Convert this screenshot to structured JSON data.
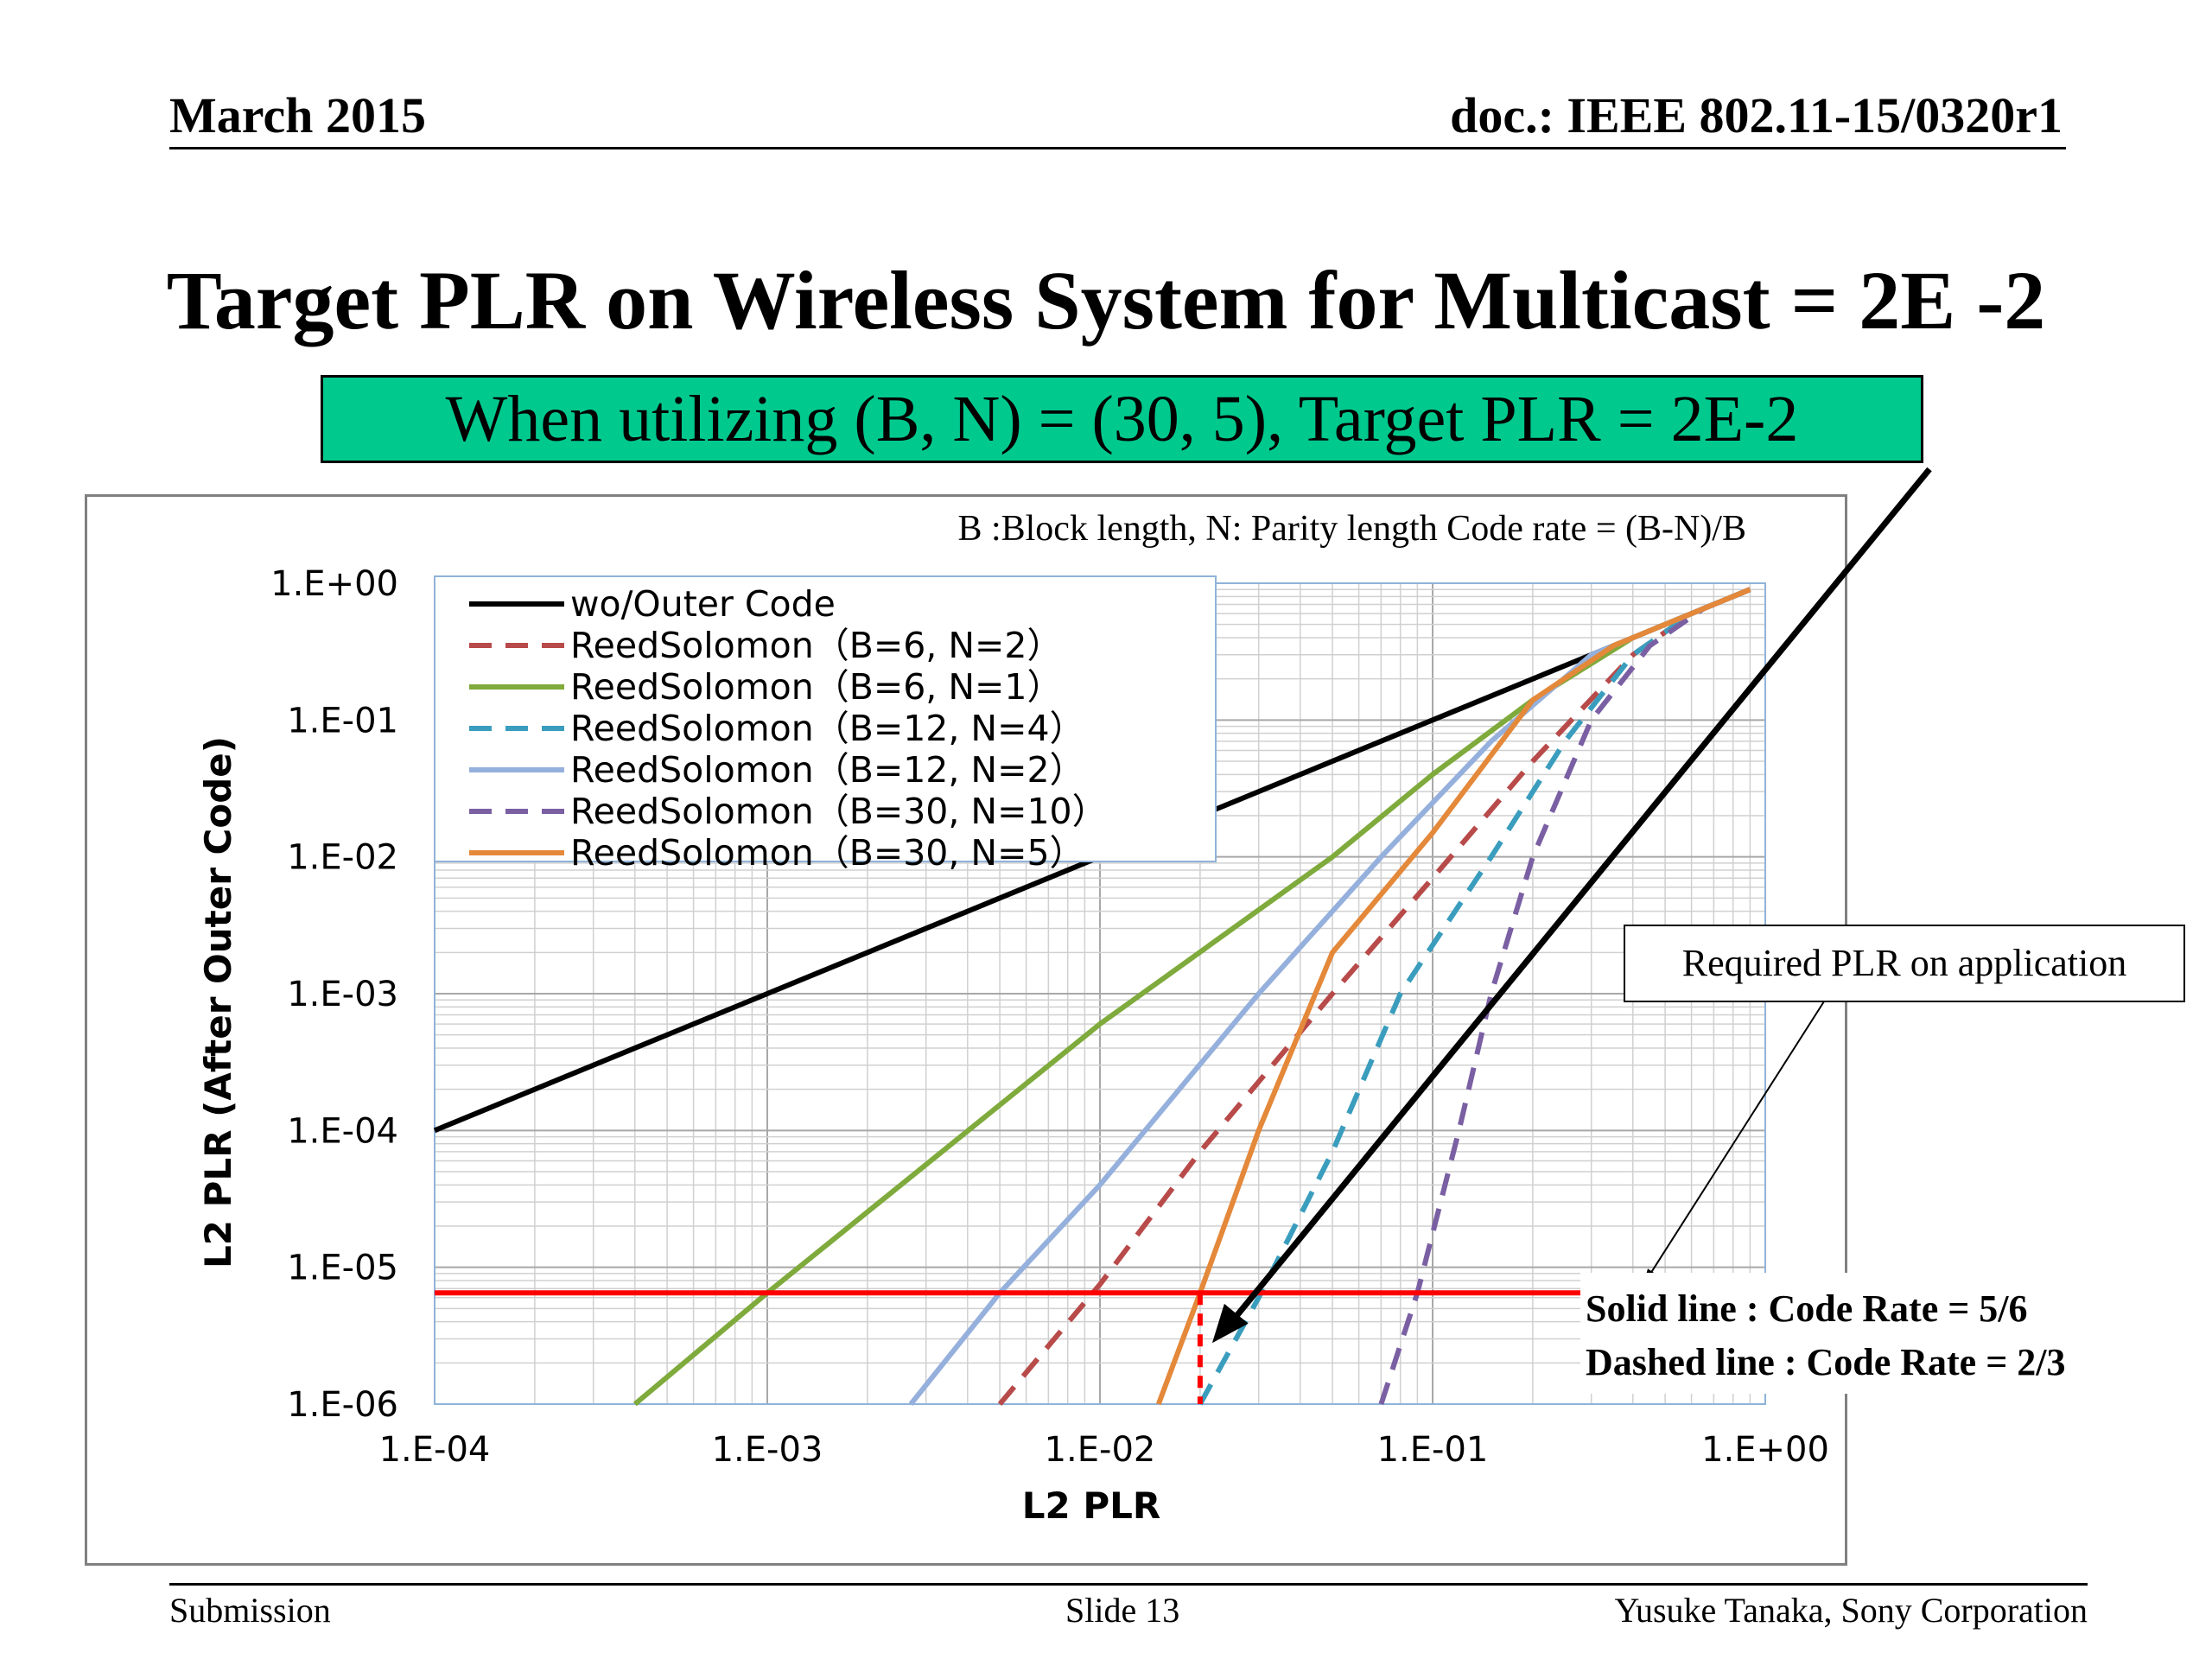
{
  "header": {
    "date": "March 2015",
    "doc_id": "doc.: IEEE 802.11-15/0320r1"
  },
  "title": "Target PLR on Wireless System for Multicast = 2E -2",
  "subtitle": "When utilizing (B, N)  =  (30, 5), Target PLR = 2E-2",
  "footer": {
    "left": "Submission",
    "center": "Slide 13",
    "right": "Yusuke Tanaka, Sony Corporation"
  },
  "colors": {
    "subtitle_bg": "#00c98e",
    "required_line": "#ff0000"
  },
  "chart_data": {
    "type": "line",
    "xlabel": "L2 PLR",
    "ylabel": "L2 PLR (After Outer Code)",
    "x_scale": "log",
    "y_scale": "log",
    "xlim": [
      0.0001,
      1
    ],
    "ylim": [
      1e-06,
      1
    ],
    "x_ticks": [
      "1.E-04",
      "1.E-03",
      "1.E-02",
      "1.E-01",
      "1.E+00"
    ],
    "y_ticks": [
      "1.E+00",
      "1.E-01",
      "1.E-02",
      "1.E-03",
      "1.E-04",
      "1.E-05",
      "1.E-06"
    ],
    "grid": true,
    "legend_position": "top-left",
    "annotation_top": "B :Block length, N: Parity length Code rate = (B-N)/B",
    "annotation_required": "Required PLR on application",
    "annotation_solid": "Solid line : Code Rate = 5/6",
    "annotation_dashed": "Dashed line : Code Rate = 2/3",
    "required_plr": 6.5e-06,
    "target_plr": 0.02,
    "series": [
      {
        "name": "wo/Outer Code",
        "color": "#000000",
        "dash": false,
        "x": [
          0.0001,
          0.001,
          0.01,
          0.1,
          0.3,
          0.9
        ],
        "y": [
          0.0001,
          0.001,
          0.01,
          0.1,
          0.3,
          0.9
        ]
      },
      {
        "name": "ReedSolomon（B=6, N=2）",
        "color": "#b84a4a",
        "dash": true,
        "x": [
          0.005,
          0.01,
          0.02,
          0.05,
          0.1,
          0.2,
          0.4,
          0.6,
          0.9
        ],
        "y": [
          1e-06,
          7.5e-06,
          7e-05,
          0.001,
          0.007,
          0.05,
          0.3,
          0.6,
          0.9
        ]
      },
      {
        "name": "ReedSolomon（B=6, N=1）",
        "color": "#7faa3c",
        "dash": false,
        "x": [
          0.0004,
          0.001,
          0.01,
          0.05,
          0.1,
          0.2,
          0.4,
          0.9
        ],
        "y": [
          1e-06,
          6.5e-06,
          0.0006,
          0.01,
          0.04,
          0.14,
          0.4,
          0.9
        ]
      },
      {
        "name": "ReedSolomon（B=12, N=4）",
        "color": "#3a9dbd",
        "dash": true,
        "x": [
          0.02,
          0.03,
          0.05,
          0.08,
          0.15,
          0.25,
          0.4,
          0.6,
          0.9
        ],
        "y": [
          1e-06,
          6e-06,
          7e-05,
          0.001,
          0.01,
          0.07,
          0.3,
          0.6,
          0.9
        ]
      },
      {
        "name": "ReedSolomon（B=12, N=2）",
        "color": "#95b0dc",
        "dash": false,
        "x": [
          0.0027,
          0.005,
          0.01,
          0.03,
          0.07,
          0.15,
          0.3,
          0.6,
          0.9
        ],
        "y": [
          1e-06,
          6.5e-06,
          4e-05,
          0.001,
          0.01,
          0.07,
          0.3,
          0.6,
          0.9
        ]
      },
      {
        "name": "ReedSolomon（B=30, N=10）",
        "color": "#7a5fa3",
        "dash": true,
        "x": [
          0.07,
          0.09,
          0.12,
          0.15,
          0.2,
          0.3,
          0.45,
          0.65,
          0.9
        ],
        "y": [
          1e-06,
          6.5e-06,
          0.0001,
          0.001,
          0.01,
          0.1,
          0.35,
          0.65,
          0.9
        ]
      },
      {
        "name": "ReedSolomon（B=30, N=5）",
        "color": "#e4883a",
        "dash": false,
        "x": [
          0.015,
          0.02,
          0.03,
          0.05,
          0.1,
          0.2,
          0.35,
          0.6,
          0.9
        ],
        "y": [
          1e-06,
          6.5e-06,
          0.0001,
          0.002,
          0.015,
          0.14,
          0.35,
          0.6,
          0.9
        ]
      }
    ]
  }
}
